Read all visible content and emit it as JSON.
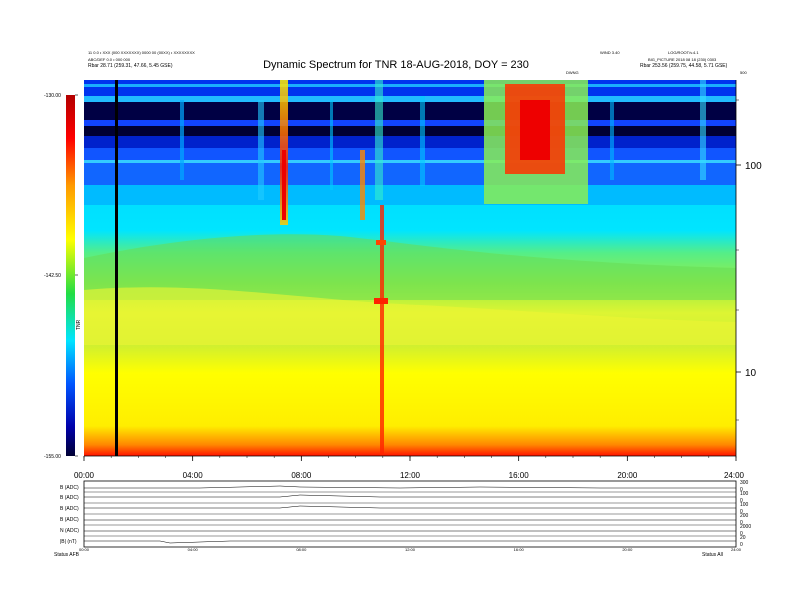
{
  "header": {
    "line1": "11 0.0 • XXX (000 XXXXXXX) 0000 00 (00XX) • XXXXXXXX",
    "line2": "ABC/DEF 0.0 • 000 000",
    "rbar_left": "Rbar  28.71 (259.31, 47.66, 5.45 GSE)",
    "right_top_1": "WIND 3.40",
    "right_top_2": "LOG/ROOT/v.4.1",
    "right_mid": "BIG_PICTURE 2018 08 18 (230) 0303",
    "rbar_right": "Rbar  253.56 (259.75, 44.58, 5.71 GSE)",
    "small_mid": "DWNG",
    "small_right": "500"
  },
  "chart_data": {
    "type": "heatmap",
    "title": "Dynamic Spectrum for TNR 18-AUG-2018, DOY = 230",
    "x_tick_labels": [
      "00:00",
      "04:00",
      "08:00",
      "12:00",
      "16:00",
      "20:00",
      "24:00"
    ],
    "x_range": [
      0,
      24
    ],
    "y_scale": "log",
    "y_tick_labels": [
      "100",
      "10"
    ],
    "colorbar": {
      "tick_labels": [
        "-130.00",
        "-142.50",
        "-155.00"
      ],
      "range": [
        -155,
        -130
      ],
      "label": "TNR",
      "colors": [
        "#b30000",
        "#ff0000",
        "#ff8800",
        "#ffff00",
        "#22dd44",
        "#00e5ff",
        "#0055ff",
        "#0000aa",
        "#000033"
      ]
    },
    "features": [
      {
        "time_hr": 1.0,
        "note": "black vertical data gap"
      },
      {
        "time_hr": 7.4,
        "note": "intense burst"
      },
      {
        "time_hr": 11.0,
        "note": "intense burst extending to low frequency"
      },
      {
        "time_hr": [
          15.9,
          18.3
        ],
        "note": "red/orange high-frequency emission"
      }
    ]
  },
  "panels": {
    "left_labels": [
      "B (ADC)",
      "B (ADC)",
      "B (ADC)",
      "B (ADC)",
      "N (ADC)",
      "|B| (nT)",
      "Status"
    ],
    "right_scale": [
      "300",
      "0",
      "100",
      "0",
      "100",
      "0",
      "200",
      "0",
      "2000",
      "0",
      "20",
      "0"
    ],
    "time_labels": [
      "00:00",
      "04:00",
      "08:00",
      "12:00",
      "16:00",
      "20:00",
      "24:00"
    ],
    "status_left": "Status  AFB",
    "status_right": "Status  All"
  }
}
